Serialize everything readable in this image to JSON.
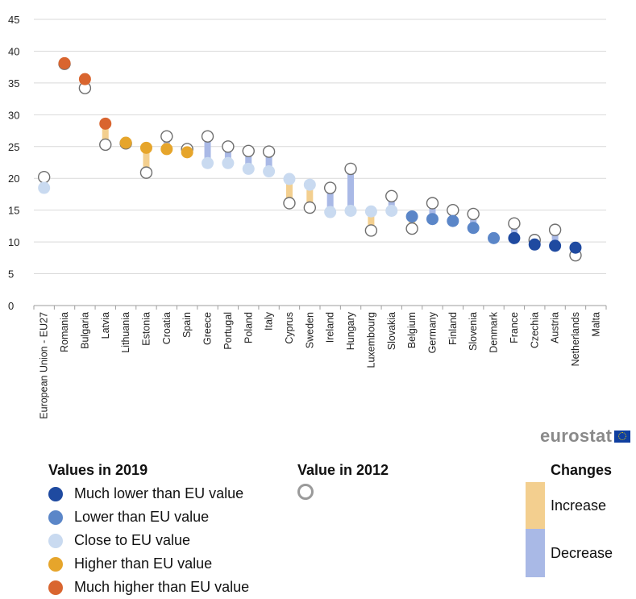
{
  "brand": {
    "logo_text": "eurostat"
  },
  "colors": {
    "much_lower": "#1f4aa0",
    "lower": "#5b86c8",
    "close": "#c9daf0",
    "higher": "#e6a52b",
    "much_higher": "#d9652f",
    "increase": "#f3cf8f",
    "decrease": "#a9b9e6",
    "ring": "#6e6e6e",
    "grid": "#d9d9d9",
    "axis": "#9e9e9e"
  },
  "legend": {
    "values2019": {
      "title": "Values in 2019",
      "items": [
        {
          "label": "Much lower than EU value",
          "color": "#1f4aa0"
        },
        {
          "label": "Lower than EU value",
          "color": "#5b86c8"
        },
        {
          "label": "Close to EU value",
          "color": "#c9daf0"
        },
        {
          "label": "Higher than EU value",
          "color": "#e6a52b"
        },
        {
          "label": "Much higher than EU value",
          "color": "#d9652f"
        }
      ]
    },
    "value2012": {
      "title": "Value in 2012"
    },
    "changes": {
      "title": "Changes",
      "increase": "Increase",
      "decrease": "Decrease"
    }
  },
  "chart_data": {
    "type": "dumbbell",
    "ylim": [
      0,
      45
    ],
    "yticks": [
      0,
      5,
      10,
      15,
      20,
      25,
      30,
      35,
      40,
      45
    ],
    "grid": true,
    "categories": [
      "European Union - EU27",
      "Romania",
      "Bulgaria",
      "Latvia",
      "Lithuania",
      "Estonia",
      "Croatia",
      "Spain",
      "Greece",
      "Portugal",
      "Poland",
      "Italy",
      "Cyprus",
      "Sweden",
      "Ireland",
      "Hungary",
      "Luxembourg",
      "Slovakia",
      "Belgium",
      "Germany",
      "Finland",
      "Slovenia",
      "Denmark",
      "France",
      "Czechia",
      "Austria",
      "Netherlands",
      "Malta"
    ],
    "series": [
      {
        "name": "Values in 2019",
        "values": [
          18.5,
          38.1,
          35.6,
          28.6,
          25.6,
          24.8,
          24.6,
          24.1,
          22.4,
          22.4,
          21.5,
          21.1,
          19.9,
          19.0,
          14.7,
          14.9,
          14.8,
          14.9,
          14.0,
          13.6,
          13.3,
          12.2,
          10.6,
          10.6,
          9.6,
          9.4,
          9.1,
          null
        ],
        "classes": [
          "close",
          "much_higher",
          "much_higher",
          "much_higher",
          "higher",
          "higher",
          "higher",
          "higher",
          "close",
          "close",
          "close",
          "close",
          "close",
          "close",
          "close",
          "close",
          "close",
          "close",
          "lower",
          "lower",
          "lower",
          "lower",
          "lower",
          "much_lower",
          "much_lower",
          "much_lower",
          "much_lower",
          null
        ]
      },
      {
        "name": "Value in 2012",
        "values": [
          20.2,
          38.0,
          34.2,
          25.3,
          25.5,
          20.9,
          26.6,
          24.6,
          26.6,
          25.0,
          24.3,
          24.2,
          16.1,
          15.4,
          18.5,
          21.5,
          11.8,
          17.2,
          12.1,
          16.1,
          15.0,
          14.4,
          null,
          12.9,
          10.3,
          11.9,
          7.9,
          null
        ]
      }
    ]
  }
}
